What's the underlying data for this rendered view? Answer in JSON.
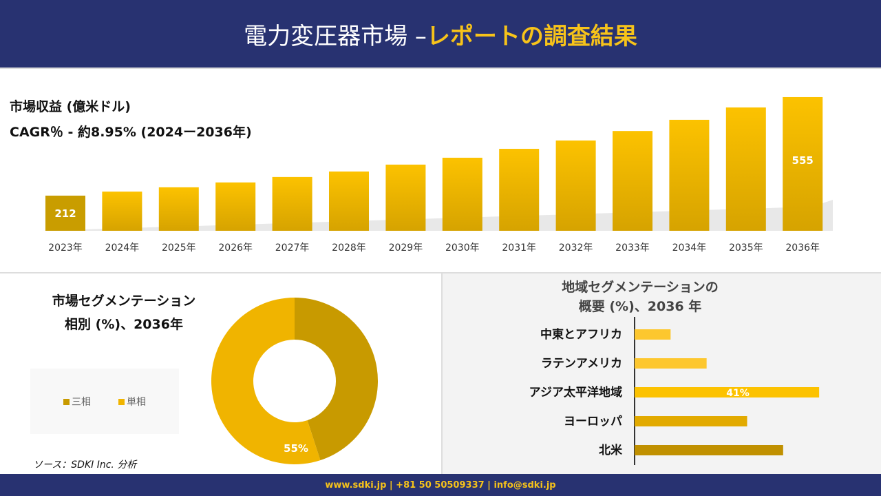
{
  "header": {
    "title_white": "電力変圧器市場 –",
    "title_yellow": "レポートの調査結果"
  },
  "revenue": {
    "label": "市場収益 (億米ドル)",
    "cagr": "CAGR％ - 約8.95% (2024ー2036年)"
  },
  "chart_data": [
    {
      "type": "bar",
      "title": "市場収益 (億米ドル)",
      "categories": [
        "2023年",
        "2024年",
        "2025年",
        "2026年",
        "2027年",
        "2028年",
        "2029年",
        "2030年",
        "2031年",
        "2032年",
        "2033年",
        "2034年",
        "2035年",
        "2036年"
      ],
      "values": [
        212,
        226,
        241,
        258,
        277,
        296,
        320,
        344,
        375,
        404,
        437,
        476,
        519,
        555
      ],
      "data_labels": {
        "0": "212",
        "13": "555"
      }
    },
    {
      "type": "pie",
      "title": "市場セグメンテーション相別 (%)、2036年",
      "categories": [
        "三相",
        "単相"
      ],
      "values": [
        45,
        55
      ],
      "colors": [
        "#c89a00",
        "#f0b400"
      ],
      "data_labels": {
        "1": "55%"
      }
    },
    {
      "type": "bar",
      "orientation": "horizontal",
      "title": "地域セグメンテーションの概要 (%)、2036 年",
      "categories": [
        "中東とアフリカ",
        "ラテンアメリカ",
        "アジア太平洋地域",
        "ヨーロッパ",
        "北米"
      ],
      "values": [
        8,
        16,
        41,
        25,
        33
      ],
      "colors": [
        "#fdc72e",
        "#fdc72e",
        "#fcc200",
        "#e2aa00",
        "#c09000"
      ],
      "data_labels": {
        "2": "41%"
      }
    }
  ],
  "segment": {
    "title_line1": "市場セグメンテーション",
    "title_line2": "相別 (%)、2036年",
    "legend": [
      "三相",
      "単相"
    ]
  },
  "region": {
    "title_line1": "地域セグメンテーションの",
    "title_line2": "概要 (%)、2036 年"
  },
  "source": "ソース：SDKI Inc. 分析",
  "footer": "www.sdki.jp | +81 50 50509337 | info@sdki.jp"
}
